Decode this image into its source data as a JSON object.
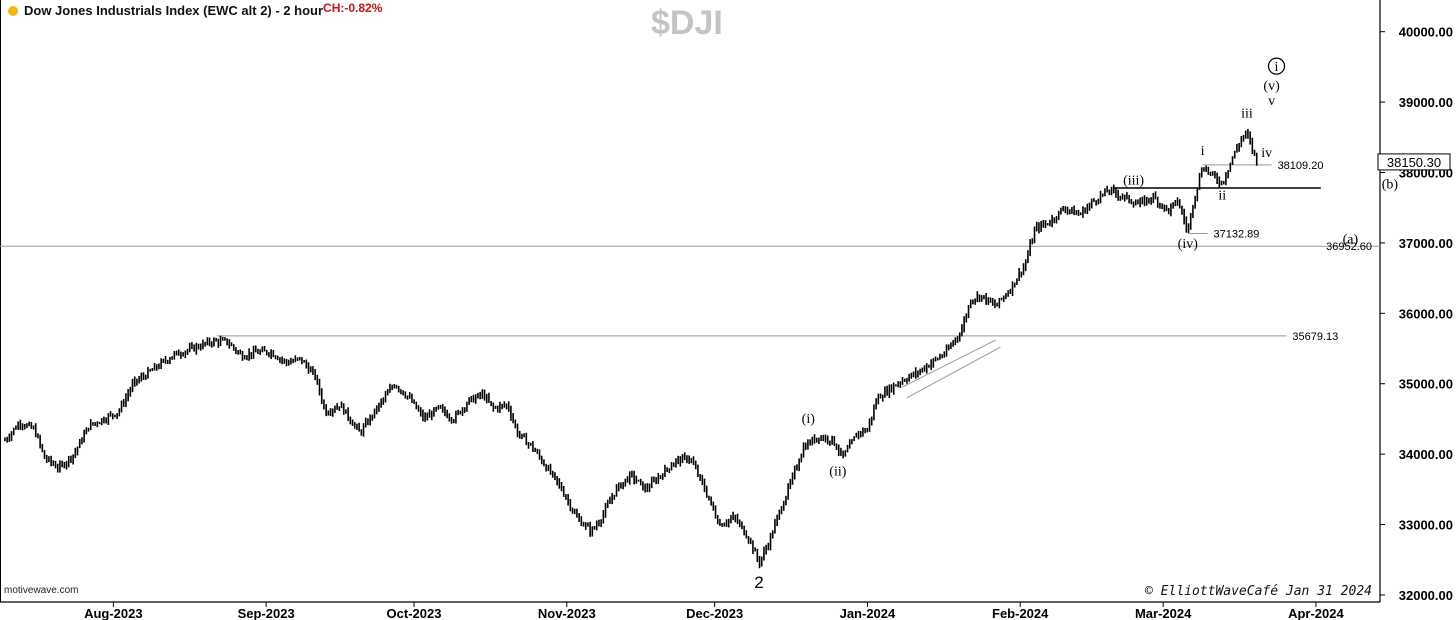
{
  "header": {
    "title": "Dow Jones Industrials Index (EWC alt 2) - 2 hour",
    "change": "CH:-0.82%",
    "symbol": "$DJI",
    "watermark": "motivewave.com",
    "copyright": "© ElliottWaveCafé Jan 31 2024",
    "indicator_color": "#f2b90d",
    "change_color": "#d01010",
    "symbol_color": "#c4c4c4"
  },
  "chart_data": {
    "type": "line",
    "subtype": "ohlc-bars",
    "ylim": [
      31900,
      40450
    ],
    "y_ticks": [
      32000,
      33000,
      34000,
      35000,
      36000,
      37000,
      38000,
      39000,
      40000
    ],
    "y_tick_labels": [
      "32000.00",
      "33000.00",
      "34000.00",
      "35000.00",
      "36000.00",
      "37000.00",
      "38000.00",
      "39000.00",
      "40000.00"
    ],
    "x_range": [
      "2023-07-09",
      "2024-04-14"
    ],
    "x_ticks": [
      "2023-08-01",
      "2023-09-01",
      "2023-10-01",
      "2023-11-01",
      "2023-12-01",
      "2024-01-01",
      "2024-02-01",
      "2024-03-01",
      "2024-04-01"
    ],
    "x_tick_labels": [
      "Aug-2023",
      "Sep-2023",
      "Oct-2023",
      "Nov-2023",
      "Dec-2023",
      "Jan-2024",
      "Feb-2024",
      "Mar-2024",
      "Apr-2024"
    ],
    "grid": false,
    "legend": "none",
    "last_price": "38150.30",
    "series": [
      {
        "values": [
          [
            "2023-07-10",
            34200
          ],
          [
            "2023-07-13",
            34450
          ],
          [
            "2023-07-16",
            34350
          ],
          [
            "2023-07-18",
            33950
          ],
          [
            "2023-07-21",
            33800
          ],
          [
            "2023-07-24",
            34000
          ],
          [
            "2023-07-27",
            34400
          ],
          [
            "2023-07-30",
            34500
          ],
          [
            "2023-08-02",
            34600
          ],
          [
            "2023-08-05",
            35000
          ],
          [
            "2023-08-09",
            35200
          ],
          [
            "2023-08-13",
            35400
          ],
          [
            "2023-08-17",
            35500
          ],
          [
            "2023-08-21",
            35600
          ],
          [
            "2023-08-24",
            35600
          ],
          [
            "2023-08-27",
            35400
          ],
          [
            "2023-08-30",
            35450
          ],
          [
            "2023-09-02",
            35450
          ],
          [
            "2023-09-05",
            35300
          ],
          [
            "2023-09-08",
            35350
          ],
          [
            "2023-09-11",
            35100
          ],
          [
            "2023-09-13",
            34600
          ],
          [
            "2023-09-16",
            34700
          ],
          [
            "2023-09-20",
            34300
          ],
          [
            "2023-09-24",
            34700
          ],
          [
            "2023-09-27",
            35000
          ],
          [
            "2023-09-30",
            34800
          ],
          [
            "2023-10-03",
            34500
          ],
          [
            "2023-10-06",
            34650
          ],
          [
            "2023-10-09",
            34500
          ],
          [
            "2023-10-12",
            34750
          ],
          [
            "2023-10-15",
            34850
          ],
          [
            "2023-10-17",
            34650
          ],
          [
            "2023-10-20",
            34700
          ],
          [
            "2023-10-22",
            34300
          ],
          [
            "2023-10-25",
            34100
          ],
          [
            "2023-10-28",
            33800
          ],
          [
            "2023-10-31",
            33500
          ],
          [
            "2023-11-03",
            33100
          ],
          [
            "2023-11-06",
            32900
          ],
          [
            "2023-11-08",
            33100
          ],
          [
            "2023-11-11",
            33500
          ],
          [
            "2023-11-14",
            33700
          ],
          [
            "2023-11-17",
            33500
          ],
          [
            "2023-11-20",
            33700
          ],
          [
            "2023-11-23",
            33900
          ],
          [
            "2023-11-26",
            33950
          ],
          [
            "2023-11-29",
            33500
          ],
          [
            "2023-12-02",
            33000
          ],
          [
            "2023-12-05",
            33100
          ],
          [
            "2023-12-08",
            32800
          ],
          [
            "2023-12-10",
            32450
          ],
          [
            "2023-12-12",
            32750
          ],
          [
            "2023-12-14",
            33150
          ],
          [
            "2023-12-17",
            33700
          ],
          [
            "2023-12-19",
            34100
          ],
          [
            "2023-12-22",
            34250
          ],
          [
            "2023-12-25",
            34200
          ],
          [
            "2023-12-27",
            33950
          ],
          [
            "2023-12-30",
            34300
          ],
          [
            "2024-01-01",
            34350
          ],
          [
            "2024-01-03",
            34800
          ],
          [
            "2024-01-05",
            34900
          ],
          [
            "2024-01-08",
            35050
          ],
          [
            "2024-01-11",
            35150
          ],
          [
            "2024-01-14",
            35300
          ],
          [
            "2024-01-17",
            35450
          ],
          [
            "2024-01-20",
            35750
          ],
          [
            "2024-01-22",
            36200
          ],
          [
            "2024-01-24",
            36250
          ],
          [
            "2024-01-27",
            36100
          ],
          [
            "2024-01-30",
            36350
          ],
          [
            "2024-02-02",
            36700
          ],
          [
            "2024-02-04",
            37200
          ],
          [
            "2024-02-07",
            37300
          ],
          [
            "2024-02-10",
            37500
          ],
          [
            "2024-02-13",
            37400
          ],
          [
            "2024-02-16",
            37600
          ],
          [
            "2024-02-19",
            37750
          ],
          [
            "2024-02-22",
            37650
          ],
          [
            "2024-02-25",
            37550
          ],
          [
            "2024-02-28",
            37650
          ],
          [
            "2024-03-02",
            37450
          ],
          [
            "2024-03-04",
            37600
          ],
          [
            "2024-03-06",
            37150
          ],
          [
            "2024-03-07",
            37550
          ],
          [
            "2024-03-09",
            38100
          ],
          [
            "2024-03-11",
            37950
          ],
          [
            "2024-03-13",
            37850
          ],
          [
            "2024-03-15",
            38200
          ],
          [
            "2024-03-17",
            38500
          ],
          [
            "2024-03-18",
            38550
          ],
          [
            "2024-03-20",
            38150
          ]
        ]
      }
    ],
    "reference_lines": [
      {
        "value": 36952.6,
        "label": "36952.60",
        "from": "2023-07-09",
        "to": "2024-04-14",
        "color": "#999999"
      },
      {
        "value": 35679.13,
        "label": "35679.13",
        "from": "2023-08-22",
        "to": "2024-03-26",
        "color": "#999999"
      },
      {
        "value": 37132.89,
        "label": "37132.89",
        "from": "2024-03-06",
        "to": "2024-03-10",
        "color": "#999999"
      },
      {
        "value": 38109.2,
        "label": "38109.20",
        "from": "2024-03-09",
        "to": "2024-03-23",
        "color": "#999999"
      },
      {
        "value": 37780,
        "label": "",
        "from": "2024-02-20",
        "to": "2024-04-02",
        "color": "#000000"
      }
    ],
    "channel_lines": [
      {
        "from": [
          "2024-01-08",
          34950
        ],
        "to": [
          "2024-01-27",
          35620
        ]
      },
      {
        "from": [
          "2024-01-09",
          34800
        ],
        "to": [
          "2024-01-28",
          35520
        ]
      }
    ],
    "annotations": [
      {
        "text": "2",
        "x": "2023-12-10",
        "y": 32100,
        "style": "bold"
      },
      {
        "text": "(i)",
        "x": "2023-12-20",
        "y": 34440
      },
      {
        "text": "(ii)",
        "x": "2023-12-26",
        "y": 33700
      },
      {
        "text": "(iii)",
        "x": "2024-02-24",
        "y": 37830
      },
      {
        "text": "(iv)",
        "x": "2024-03-06",
        "y": 36930
      },
      {
        "text": "i",
        "x": "2024-03-09",
        "y": 38250
      },
      {
        "text": "ii",
        "x": "2024-03-13",
        "y": 37620
      },
      {
        "text": "iii",
        "x": "2024-03-18",
        "y": 38780
      },
      {
        "text": "iv",
        "x": "2024-03-22",
        "y": 38220
      },
      {
        "text": "v",
        "x": "2024-03-23",
        "y": 38960
      },
      {
        "text": "(v)",
        "x": "2024-03-23",
        "y": 39170
      },
      {
        "text": "i",
        "x": "2024-03-24",
        "y": 39440,
        "style": "circled"
      },
      {
        "text": "(a)",
        "x": "2024-04-08",
        "y": 36990
      },
      {
        "text": "(b)",
        "x": "2024-04-16",
        "y": 37770
      }
    ]
  }
}
